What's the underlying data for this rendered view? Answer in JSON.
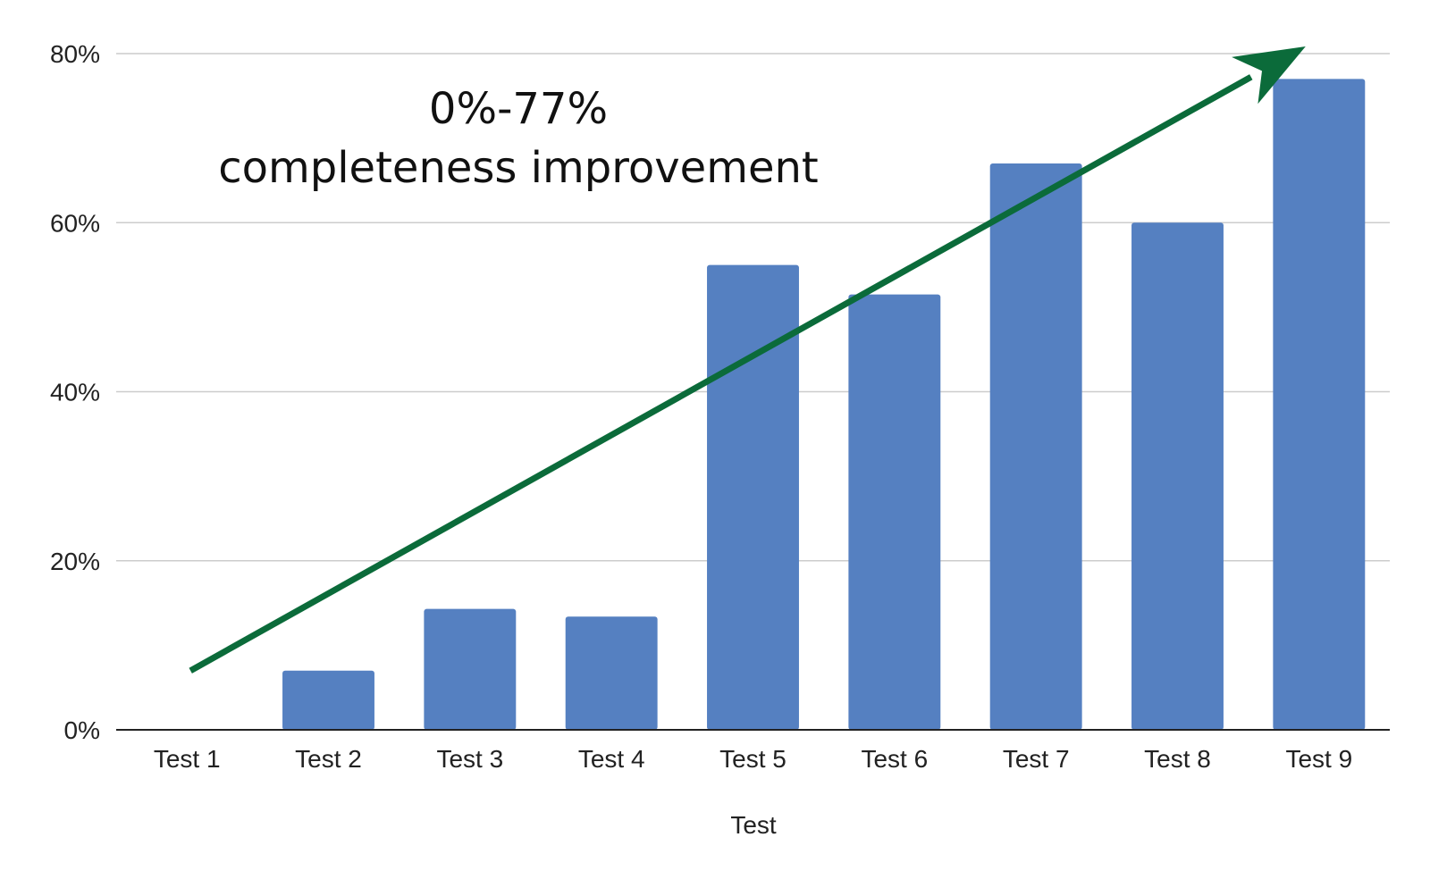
{
  "chart_data": {
    "type": "bar",
    "title": "",
    "xlabel": "Test",
    "ylabel": "",
    "ylim": [
      0,
      80
    ],
    "y_ticks": [
      "0%",
      "20%",
      "40%",
      "60%",
      "80%"
    ],
    "y_tick_values": [
      0,
      20,
      40,
      60,
      80
    ],
    "grid": true,
    "categories": [
      "Test 1",
      "Test 2",
      "Test 3",
      "Test 4",
      "Test 5",
      "Test 6",
      "Test 7",
      "Test 8",
      "Test 9"
    ],
    "values": [
      0,
      7,
      14.3,
      13.4,
      55,
      51.5,
      67,
      60,
      77
    ],
    "annotation": {
      "line1": "0%-77%",
      "line2": "completeness improvement"
    },
    "trend_arrow": {
      "from_value": 7,
      "to_value": 80
    }
  },
  "colors": {
    "bar": "#5580C1",
    "trend_arrow": "#0B6B3A",
    "grid": "#cccccc",
    "baseline": "#222222"
  }
}
